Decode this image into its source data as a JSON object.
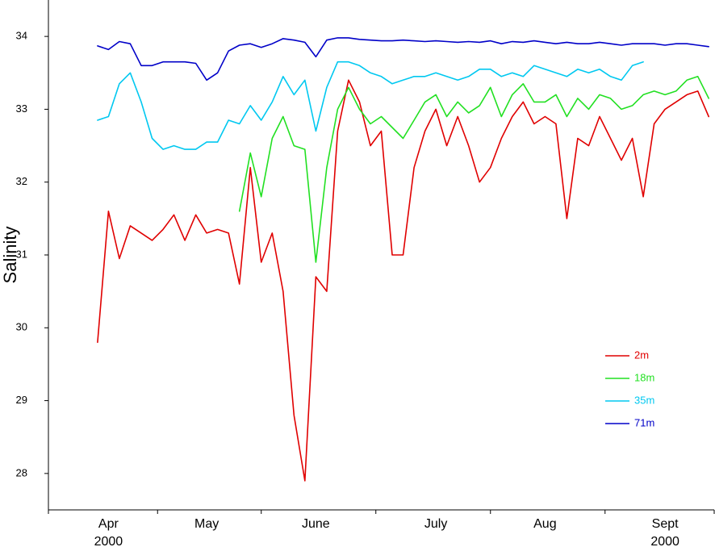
{
  "chart_data": {
    "type": "line",
    "ylabel": "Salinity",
    "categories": [
      null,
      null,
      null,
      null,
      null,
      "Apr",
      null,
      null,
      null,
      null,
      null,
      null,
      null,
      null,
      "May",
      null,
      null,
      null,
      null,
      null,
      null,
      null,
      null,
      null,
      "June",
      null,
      null,
      null,
      null,
      null,
      null,
      null,
      null,
      null,
      null,
      "July",
      null,
      null,
      null,
      null,
      null,
      null,
      null,
      null,
      null,
      "Aug",
      null,
      null,
      null,
      null,
      null,
      null,
      null,
      null,
      null,
      null,
      "Sept",
      null,
      null,
      null,
      null
    ],
    "x_year_labels": [
      null,
      null,
      null,
      null,
      null,
      "2000",
      null,
      null,
      null,
      null,
      null,
      null,
      null,
      null,
      null,
      null,
      null,
      null,
      null,
      null,
      null,
      null,
      null,
      null,
      null,
      null,
      null,
      null,
      null,
      null,
      null,
      null,
      null,
      null,
      null,
      null,
      null,
      null,
      null,
      null,
      null,
      null,
      null,
      null,
      null,
      null,
      null,
      null,
      null,
      null,
      null,
      null,
      null,
      null,
      null,
      null,
      "2000",
      null,
      null,
      null,
      null
    ],
    "ylim": [
      27.5,
      34.5
    ],
    "yticks": [
      28,
      29,
      30,
      31,
      32,
      33,
      34
    ],
    "legend": "lower right",
    "series": [
      {
        "name": "2m",
        "color": "#e00000",
        "values": [
          null,
          null,
          null,
          null,
          29.8,
          31.6,
          30.95,
          31.4,
          31.3,
          31.2,
          31.35,
          31.55,
          31.2,
          31.55,
          31.3,
          31.35,
          31.3,
          30.6,
          32.2,
          30.9,
          31.3,
          30.5,
          28.8,
          27.9,
          30.7,
          30.5,
          32.7,
          33.4,
          33.1,
          32.5,
          32.7,
          31.0,
          31.0,
          32.2,
          32.7,
          33.0,
          32.5,
          32.9,
          32.5,
          32.0,
          32.2,
          32.6,
          32.9,
          33.1,
          32.8,
          32.9,
          32.8,
          31.5,
          32.6,
          32.5,
          32.9,
          32.6,
          32.3,
          32.6,
          31.8,
          32.8,
          33.0,
          33.1,
          33.2,
          33.25,
          32.9
        ]
      },
      {
        "name": "18m",
        "color": "#22e022",
        "values": [
          null,
          null,
          null,
          null,
          null,
          null,
          null,
          null,
          null,
          null,
          null,
          null,
          null,
          null,
          null,
          null,
          null,
          31.6,
          32.4,
          31.8,
          32.6,
          32.9,
          32.5,
          32.45,
          30.9,
          32.2,
          33.0,
          33.3,
          33.0,
          32.8,
          32.9,
          32.75,
          32.6,
          32.85,
          33.1,
          33.2,
          32.9,
          33.1,
          32.95,
          33.05,
          33.3,
          32.9,
          33.2,
          33.35,
          33.1,
          33.1,
          33.2,
          32.9,
          33.15,
          33.0,
          33.2,
          33.15,
          33.0,
          33.05,
          33.2,
          33.25,
          33.2,
          33.25,
          33.4,
          33.45,
          33.15
        ]
      },
      {
        "name": "35m",
        "color": "#00c8f0",
        "values": [
          null,
          null,
          null,
          null,
          32.85,
          32.9,
          33.35,
          33.5,
          33.1,
          32.6,
          32.45,
          32.5,
          32.45,
          32.45,
          32.55,
          32.55,
          32.85,
          32.8,
          33.05,
          32.85,
          33.1,
          33.45,
          33.2,
          33.4,
          32.7,
          33.3,
          33.65,
          33.65,
          33.6,
          33.5,
          33.45,
          33.35,
          33.4,
          33.45,
          33.45,
          33.5,
          33.45,
          33.4,
          33.45,
          33.55,
          33.55,
          33.45,
          33.5,
          33.45,
          33.6,
          33.55,
          33.5,
          33.45,
          33.55,
          33.5,
          33.55,
          33.45,
          33.4,
          33.6,
          33.65,
          null,
          null,
          null,
          null,
          null,
          null
        ]
      },
      {
        "name": "71m",
        "color": "#0000c8",
        "values": [
          null,
          null,
          null,
          null,
          33.87,
          33.82,
          33.93,
          33.9,
          33.6,
          33.6,
          33.65,
          33.65,
          33.65,
          33.63,
          33.4,
          33.5,
          33.8,
          33.88,
          33.9,
          33.85,
          33.9,
          33.97,
          33.95,
          33.92,
          33.72,
          33.95,
          33.98,
          33.98,
          33.96,
          33.95,
          33.94,
          33.94,
          33.95,
          33.94,
          33.93,
          33.94,
          33.93,
          33.92,
          33.93,
          33.92,
          33.94,
          33.9,
          33.93,
          33.92,
          33.94,
          33.92,
          33.9,
          33.92,
          33.9,
          33.9,
          33.92,
          33.9,
          33.88,
          33.9,
          33.9,
          33.9,
          33.88,
          33.9,
          33.9,
          33.88,
          33.86
        ]
      }
    ]
  }
}
